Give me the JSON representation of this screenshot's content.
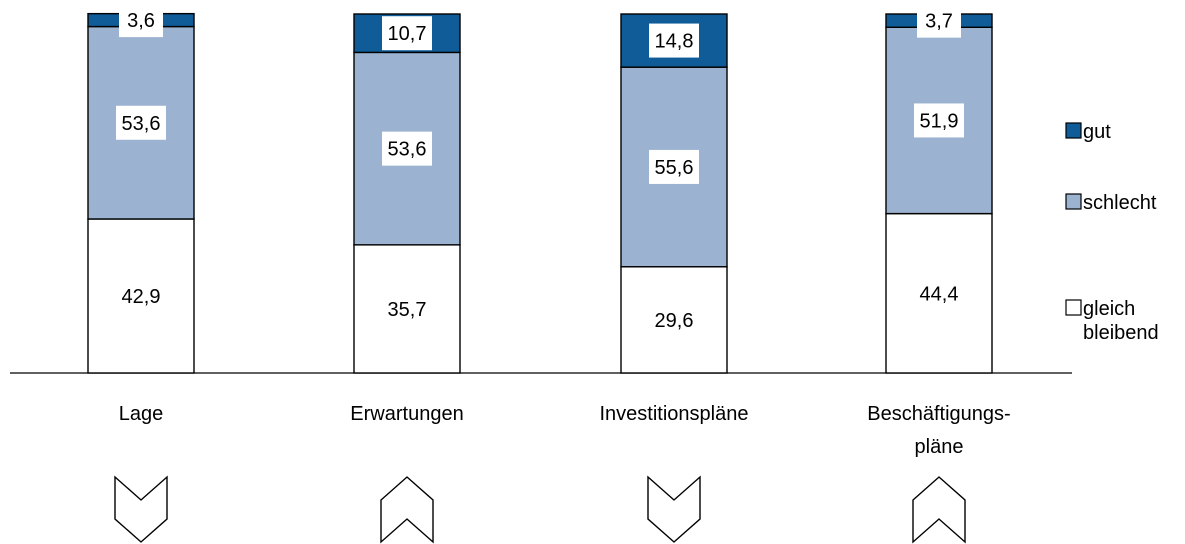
{
  "colors": {
    "gut": "#0f5c99",
    "schlecht": "#9bb3d1",
    "gleich_bleibend": "#ffffff",
    "stroke": "#000000"
  },
  "chart_data": {
    "type": "bar",
    "stacked": true,
    "categories": [
      "Lage",
      "Erwartungen",
      "Investitionspläne",
      "Beschäftigungs-pläne"
    ],
    "category_label_lines": [
      [
        "Lage"
      ],
      [
        "Erwartungen"
      ],
      [
        "Investitionspläne"
      ],
      [
        "Beschäftigungs-",
        "pläne"
      ]
    ],
    "series": [
      {
        "name": "gleich bleibend",
        "key": "gleich_bleibend",
        "values": [
          42.9,
          35.7,
          29.6,
          44.4
        ],
        "labels": [
          "42,9",
          "35,7",
          "29,6",
          "44,4"
        ]
      },
      {
        "name": "schlecht",
        "key": "schlecht",
        "values": [
          53.6,
          53.6,
          55.6,
          51.9
        ],
        "labels": [
          "53,6",
          "53,6",
          "55,6",
          "51,9"
        ]
      },
      {
        "name": "gut",
        "key": "gut",
        "values": [
          3.6,
          10.7,
          14.8,
          3.7
        ],
        "labels": [
          "3,6",
          "10,7",
          "14,8",
          "3,7"
        ]
      }
    ],
    "legend": {
      "position": "right",
      "items": [
        {
          "key": "gut",
          "lines": [
            "gut"
          ]
        },
        {
          "key": "schlecht",
          "lines": [
            "schlecht"
          ]
        },
        {
          "key": "gleich_bleibend",
          "lines": [
            "gleich",
            "bleibend"
          ]
        }
      ]
    },
    "trend_arrows": [
      "down",
      "up",
      "down",
      "up"
    ],
    "ylim": [
      0,
      100
    ],
    "grid": false,
    "title": "",
    "xlabel": "",
    "ylabel": ""
  }
}
